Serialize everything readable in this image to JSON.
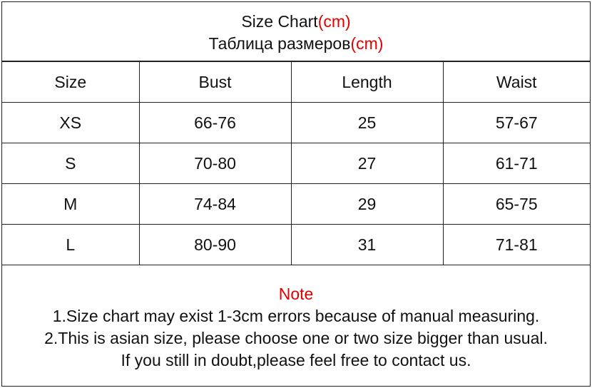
{
  "title": {
    "line1": "Size Chart",
    "line1_unit": "(cm)",
    "line2": "Таблица размеров",
    "line2_unit": "(cm)"
  },
  "table": {
    "headers": [
      "Size",
      "Bust",
      "Length",
      "Waist"
    ],
    "rows": [
      [
        "XS",
        "66-76",
        "25",
        "57-67"
      ],
      [
        "S",
        "70-80",
        "27",
        "61-71"
      ],
      [
        "M",
        "74-84",
        "29",
        "65-75"
      ],
      [
        "L",
        "80-90",
        "31",
        "71-81"
      ]
    ]
  },
  "note": {
    "heading": "Note",
    "lines": [
      "1.Size chart may exist 1-3cm errors because of manual measuring.",
      "2.This is asian size, please choose one or two size bigger than usual.",
      "If you still in doubt,please feel free to contact us."
    ]
  },
  "colors": {
    "accent": "#e00000",
    "border": "#222222"
  }
}
